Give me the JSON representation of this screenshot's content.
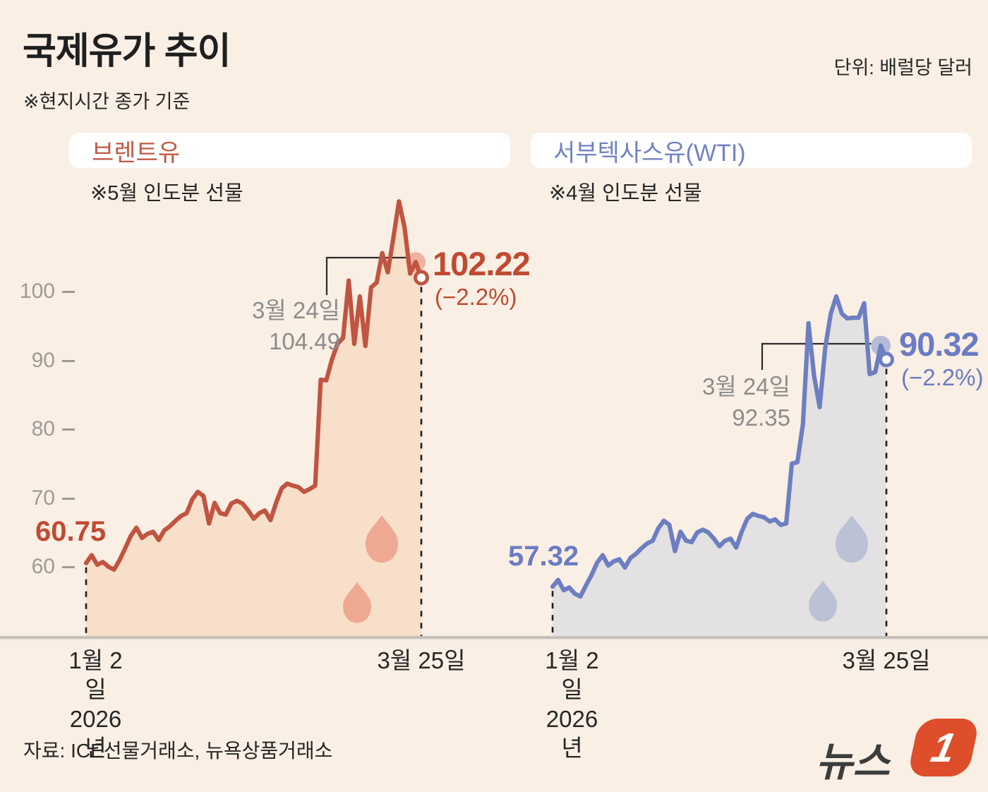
{
  "header": {
    "title": "국제유가 추이",
    "subtitle": "※현지시간 종가 기준",
    "unit": "단위: 배럴당 달러"
  },
  "y_axis": {
    "ticks": [
      "100",
      "90",
      "80",
      "70",
      "60"
    ],
    "ylim": [
      55,
      115
    ]
  },
  "chart_data": [
    {
      "id": "brent",
      "type": "area",
      "name": "브렌트유",
      "note": "※5월 인도분 선물",
      "line_color": "#bf5540",
      "fill_color": "#f8dfca",
      "drop_color": "#efa993",
      "faded_dot_color": "#eeb2a2",
      "text_color": "#c04a32",
      "start_label": "60.75",
      "end_label": "102.22",
      "end_change": "(−2.2%)",
      "annotation": {
        "date": "3월 24일",
        "value": "104.49"
      },
      "x_axis": {
        "start_line1": "1월 2일",
        "start_line2": "2026년",
        "end": "3월 25일"
      },
      "values": [
        60.75,
        61.9,
        60.5,
        60.9,
        60.2,
        59.8,
        61.2,
        62.9,
        64.7,
        65.9,
        64.4,
        65.0,
        65.3,
        64.1,
        65.5,
        66.1,
        66.9,
        67.6,
        68.0,
        70.0,
        71.1,
        70.5,
        66.5,
        69.5,
        68.0,
        67.8,
        69.4,
        69.8,
        69.4,
        68.4,
        67.2,
        68.0,
        68.4,
        67.0,
        69.5,
        71.6,
        72.3,
        72.0,
        71.8,
        71.1,
        71.5,
        72.0,
        87.4,
        87.3,
        90.3,
        92.6,
        93.5,
        101.8,
        92.6,
        99.5,
        92.3,
        100.8,
        101.5,
        105.8,
        103.0,
        108.0,
        113.3,
        109.5,
        102.8,
        104.49,
        102.22
      ]
    },
    {
      "id": "wti",
      "type": "area",
      "name": "서부텍사스유(WTI)",
      "note": "※4월 인도분 선물",
      "line_color": "#6d7ec1",
      "fill_color": "#e3e1e1",
      "drop_color": "#bcc2d5",
      "faded_dot_color": "#b6bcd6",
      "text_color": "#6b7cc3",
      "start_label": "57.32",
      "end_label": "90.32",
      "end_change": "(−2.2%)",
      "annotation": {
        "date": "3월 24일",
        "value": "92.35"
      },
      "x_axis": {
        "start_line1": "1월 2일",
        "start_line2": "2026년",
        "end": "3월 25일"
      },
      "values": [
        57.32,
        58.3,
        56.8,
        57.2,
        56.3,
        55.9,
        57.5,
        59.0,
        60.8,
        61.9,
        60.4,
        61.0,
        61.3,
        60.1,
        61.5,
        62.1,
        62.9,
        63.6,
        64.0,
        65.8,
        66.9,
        66.3,
        62.5,
        65.3,
        64.0,
        63.8,
        65.2,
        65.6,
        65.2,
        64.3,
        63.2,
        64.0,
        64.3,
        63.0,
        65.3,
        67.2,
        67.9,
        67.6,
        67.4,
        66.8,
        67.1,
        66.3,
        66.5,
        75.2,
        75.4,
        81.0,
        95.6,
        88.0,
        83.4,
        92.0,
        97.0,
        99.5,
        97.0,
        96.3,
        96.4,
        96.4,
        98.5,
        88.2,
        88.5,
        92.35,
        90.32
      ]
    }
  ],
  "footer": {
    "source": "자료: ICE선물거래소, 뉴욕상품거래소",
    "logo_text": "뉴스",
    "logo_badge": "1"
  }
}
